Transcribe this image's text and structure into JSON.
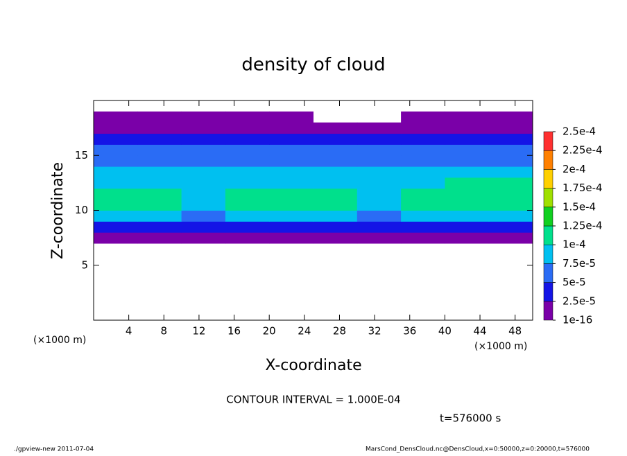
{
  "chart_data": {
    "type": "contour",
    "title": "density of cloud",
    "x_label": "X-coordinate",
    "y_label": "Z-coordinate",
    "y_unit": "(×1000 m)",
    "x_unit": "(×1000 m)",
    "contour_note": "CONTOUR INTERVAL = 1.000E-04",
    "time_note": "t=576000 s",
    "footer_left": "./gpview-new   2011-07-04",
    "footer_right": "MarsCond_DensCloud.nc@DensCloud,x=0:50000,z=0:20000,t=576000",
    "xlim": [
      0,
      50
    ],
    "ylim": [
      0,
      20
    ],
    "xticks": [
      4,
      8,
      12,
      16,
      20,
      24,
      28,
      32,
      36,
      40,
      44,
      48
    ],
    "yticks": [
      5,
      10,
      15
    ],
    "x": [
      0,
      5,
      10,
      15,
      20,
      25,
      30,
      35,
      40,
      45,
      50
    ],
    "z": [
      7,
      8,
      9,
      10,
      11,
      12,
      13,
      14,
      15,
      16,
      17,
      18,
      19
    ],
    "values": [
      [
        1e-05,
        1e-05,
        1e-05,
        1e-05,
        1e-05,
        1e-05,
        1e-05,
        1e-05,
        1e-05,
        1e-05
      ],
      [
        4e-05,
        4e-05,
        4e-05,
        4e-05,
        4e-05,
        4e-05,
        4e-05,
        4e-05,
        4e-05,
        4e-05
      ],
      [
        8e-05,
        8e-05,
        7e-05,
        8e-05,
        8e-05,
        8e-05,
        7e-05,
        8e-05,
        8e-05,
        8e-05
      ],
      [
        0.00011,
        0.000105,
        8e-05,
        0.000115,
        0.000115,
        0.00011,
        8.5e-05,
        0.000105,
        0.00011,
        0.00011
      ],
      [
        0.00011,
        0.000105,
        8e-05,
        0.00011,
        0.000115,
        0.000105,
        8.5e-05,
        0.000105,
        0.00011,
        0.000115
      ],
      [
        9e-05,
        8.5e-05,
        8e-05,
        9e-05,
        9e-05,
        9e-05,
        8e-05,
        9e-05,
        0.000105,
        0.000105
      ],
      [
        8e-05,
        8e-05,
        8e-05,
        8e-05,
        8e-05,
        8e-05,
        8e-05,
        8e-05,
        8e-05,
        8e-05
      ],
      [
        7e-05,
        7e-05,
        7e-05,
        7e-05,
        7e-05,
        7e-05,
        7e-05,
        7e-05,
        7e-05,
        7e-05
      ],
      [
        5.5e-05,
        5.5e-05,
        5.5e-05,
        5.5e-05,
        5.5e-05,
        5.5e-05,
        5.5e-05,
        5.5e-05,
        5.5e-05,
        5.5e-05
      ],
      [
        3e-05,
        3e-05,
        3e-05,
        3e-05,
        3e-05,
        3e-05,
        3e-05,
        3e-05,
        3e-05,
        3e-05
      ],
      [
        1e-05,
        1e-05,
        1e-05,
        1e-05,
        1e-05,
        1e-05,
        1e-05,
        1e-05,
        1e-05,
        1e-05
      ],
      [
        1e-05,
        1e-05,
        1e-05,
        1e-05,
        1e-05,
        null,
        null,
        1e-05,
        1e-05,
        1e-05
      ]
    ],
    "levels": [
      {
        "value": 1e-16,
        "label": "1e-16"
      },
      {
        "value": 2.5e-05,
        "label": "2.5e-5"
      },
      {
        "value": 5e-05,
        "label": "5e-5"
      },
      {
        "value": 7.5e-05,
        "label": "7.5e-5"
      },
      {
        "value": 0.0001,
        "label": "1e-4"
      },
      {
        "value": 0.000125,
        "label": "1.25e-4"
      },
      {
        "value": 0.00015,
        "label": "1.5e-4"
      },
      {
        "value": 0.000175,
        "label": "1.75e-4"
      },
      {
        "value": 0.0002,
        "label": "2e-4"
      },
      {
        "value": 0.000225,
        "label": "2.25e-4"
      },
      {
        "value": 0.00025,
        "label": "2.5e-4"
      }
    ],
    "colors": [
      "#7a00a8",
      "#1414e6",
      "#2a6cf5",
      "#00c0f0",
      "#00e08c",
      "#10d020",
      "#a0e000",
      "#ffd000",
      "#ff8000",
      "#ff3030"
    ]
  }
}
